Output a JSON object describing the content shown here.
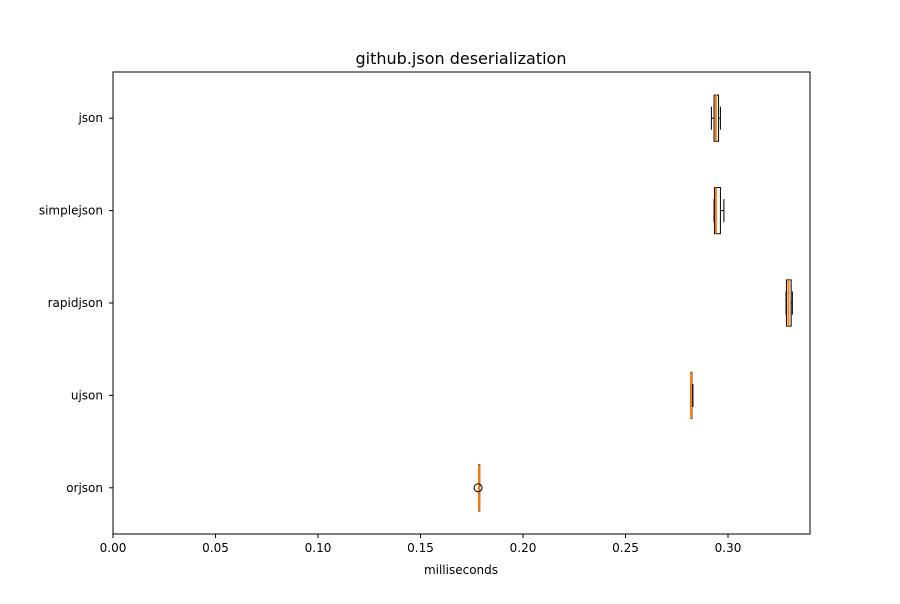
{
  "chart_data": {
    "type": "boxplot",
    "orientation": "horizontal",
    "title": "github.json deserialization",
    "xlabel": "milliseconds",
    "ylabel": "",
    "xlim": [
      0,
      0.34
    ],
    "xticks": [
      0.0,
      0.05,
      0.1,
      0.15,
      0.2,
      0.25,
      0.3
    ],
    "xtick_labels": [
      "0.00",
      "0.05",
      "0.10",
      "0.15",
      "0.20",
      "0.25",
      "0.30"
    ],
    "grid": false,
    "box_color": "#000000",
    "box_fill": "#ffffff",
    "median_color": "#ff7f0e",
    "categories": [
      "json",
      "simplejson",
      "rapidjson",
      "ujson",
      "orjson"
    ],
    "boxes": [
      {
        "label": "json",
        "whisker_low": 0.2919,
        "q1": 0.2932,
        "median": 0.2941,
        "q3": 0.2954,
        "whisker_high": 0.2963,
        "outliers": []
      },
      {
        "label": "simplejson",
        "whisker_low": 0.2932,
        "q1": 0.2934,
        "median": 0.2941,
        "q3": 0.2963,
        "whisker_high": 0.298,
        "outliers": []
      },
      {
        "label": "rapidjson",
        "whisker_low": 0.3283,
        "q1": 0.3285,
        "median": 0.3295,
        "q3": 0.3308,
        "whisker_high": 0.3314,
        "outliers": []
      },
      {
        "label": "ujson",
        "whisker_low": 0.2817,
        "q1": 0.2819,
        "median": 0.282,
        "q3": 0.2824,
        "whisker_high": 0.2829,
        "outliers": []
      },
      {
        "label": "orjson",
        "whisker_low": 0.1783,
        "q1": 0.1784,
        "median": 0.1785,
        "q3": 0.1786,
        "whisker_high": 0.1787,
        "outliers": [
          0.1781
        ]
      }
    ]
  }
}
